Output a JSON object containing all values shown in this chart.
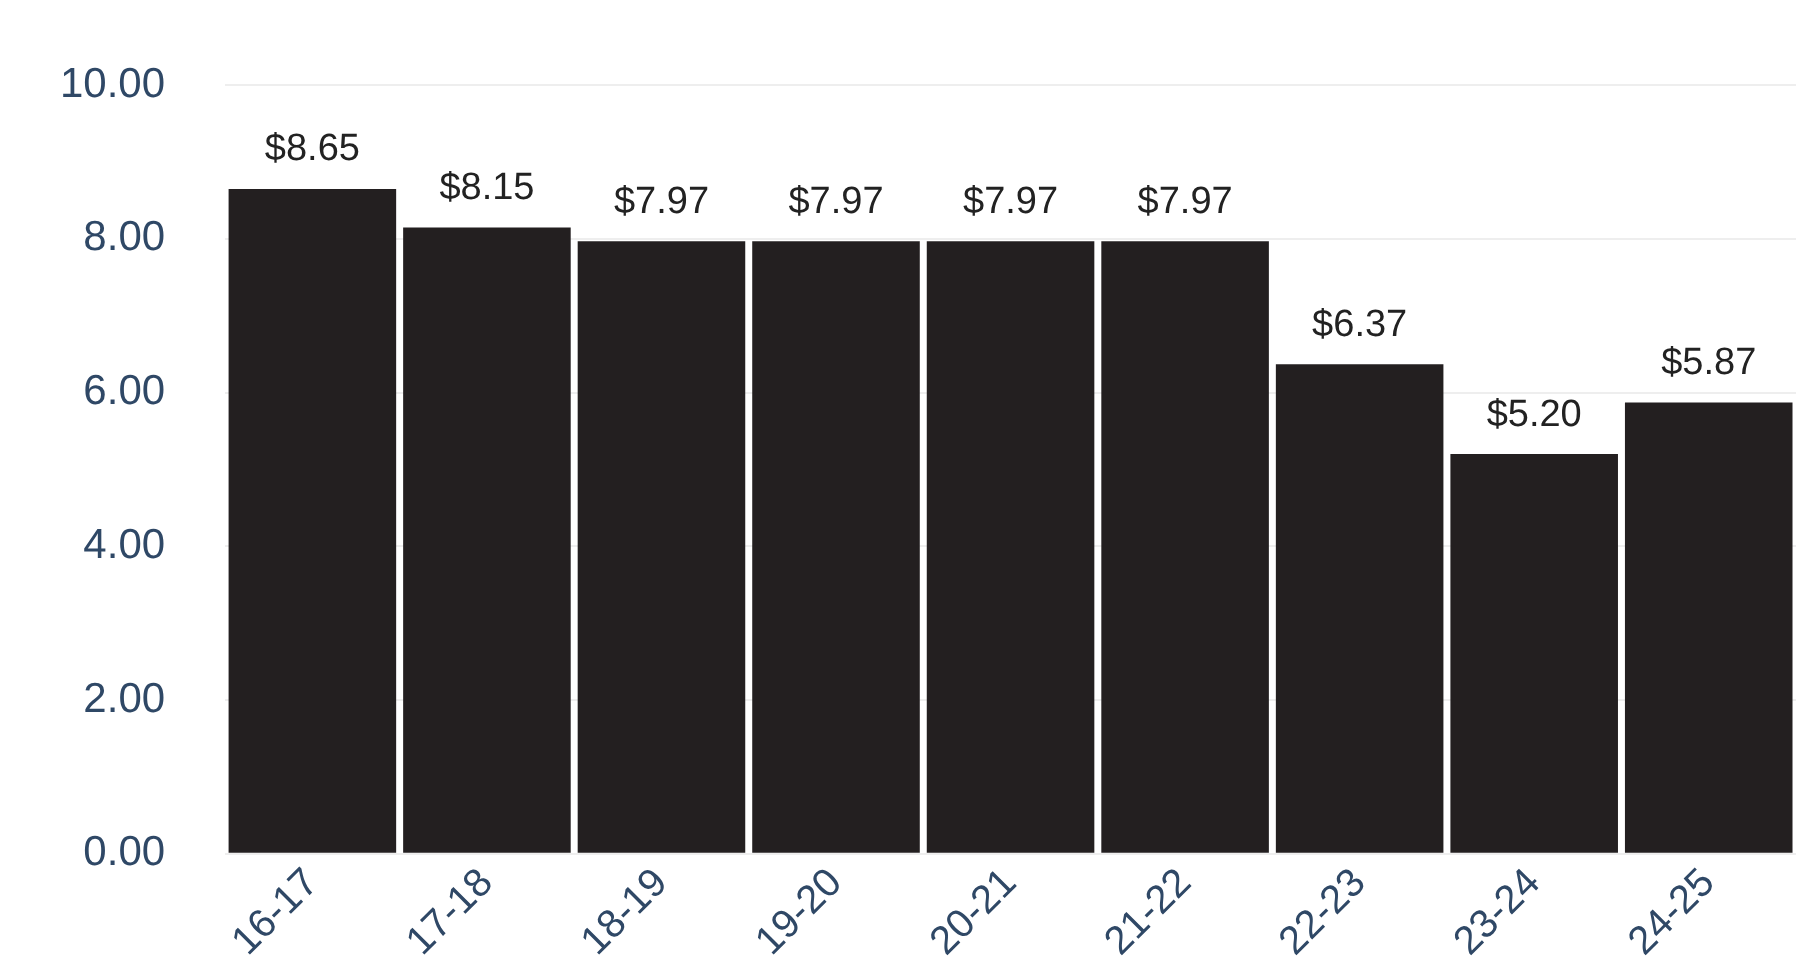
{
  "chart_data": {
    "type": "bar",
    "categories": [
      "16-17",
      "17-18",
      "18-19",
      "19-20",
      "20-21",
      "21-22",
      "22-23",
      "23-24",
      "24-25"
    ],
    "values": [
      8.65,
      8.15,
      7.97,
      7.97,
      7.97,
      7.97,
      6.37,
      5.2,
      5.87
    ],
    "value_labels": [
      "$8.65",
      "$8.15",
      "$7.97",
      "$7.97",
      "$7.97",
      "$7.97",
      "$6.37",
      "$5.20",
      "$5.87"
    ],
    "color": "#231f20",
    "ylim": [
      0,
      10
    ],
    "yticks": [
      {
        "value": 0,
        "label": "0.00"
      },
      {
        "value": 2,
        "label": "2.00"
      },
      {
        "value": 4,
        "label": "4.00"
      },
      {
        "value": 6,
        "label": "6.00"
      },
      {
        "value": 8,
        "label": "8.00"
      },
      {
        "value": 10,
        "label": "10.00"
      }
    ],
    "grid": "y",
    "legend": false
  }
}
